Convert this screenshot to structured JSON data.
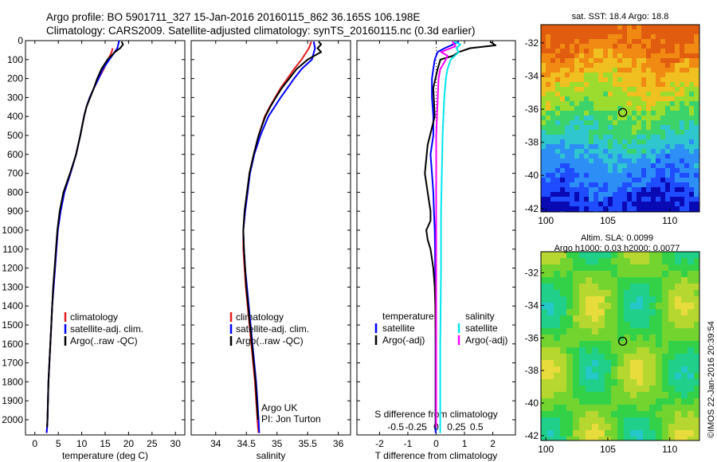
{
  "title": {
    "line1": "Argo profile: BO 5901711_327 15-Jan-2016 20160115_862 36.165S 106.198E",
    "line2": "Climatology: CARS2009. Satellite-adjusted climatology: synTS_20160115.nc (0.3d earlier)"
  },
  "stamp": "©IMOS 22-Jan-2016 20:39:54",
  "colors": {
    "climatology": "#e41a1c",
    "satellite": "#0000ff",
    "argo": "#000000",
    "satellite_s": "#00e5ee",
    "argo_s": "#ff00ff"
  },
  "chart_data": [
    {
      "type": "line",
      "xlabel": "temperature (deg C)",
      "xlim": [
        -2,
        32
      ],
      "ylim": [
        2080,
        0
      ],
      "xticks": [
        0,
        5,
        10,
        15,
        20,
        25,
        30
      ],
      "yticks": [
        0,
        100,
        200,
        300,
        400,
        500,
        600,
        700,
        800,
        900,
        1000,
        1100,
        1200,
        1300,
        1400,
        1500,
        1600,
        1700,
        1800,
        1900,
        2000
      ],
      "legend": {
        "placement": "bottom-center",
        "entries": [
          "climatology",
          "satellite-adj. clim.",
          "Argo(..raw -QC)"
        ]
      },
      "series": [
        {
          "name": "climatology",
          "color": "climatology",
          "x": [
            16.6,
            16.4,
            15.6,
            14.7,
            13.6,
            12.6,
            11.7,
            11.0,
            10.5,
            9.7,
            8.8,
            7.6,
            6.3,
            5.5,
            4.9,
            4.6,
            4.3,
            4.0,
            3.7,
            3.5,
            3.3,
            3.1,
            2.9,
            2.8,
            2.7,
            2.6,
            2.5
          ],
          "y": [
            40,
            60,
            100,
            150,
            200,
            250,
            300,
            350,
            400,
            500,
            600,
            700,
            800,
            900,
            1000,
            1100,
            1200,
            1300,
            1400,
            1500,
            1600,
            1700,
            1800,
            1900,
            2000,
            2040,
            2070
          ]
        },
        {
          "name": "satellite-adj. clim.",
          "color": "satellite",
          "x": [
            18.0,
            17.6,
            15.9,
            14.5,
            13.6,
            12.6,
            11.7,
            11.0,
            10.5,
            9.7,
            8.8,
            7.6,
            6.3,
            5.5,
            4.9,
            4.6,
            4.3,
            4.0,
            3.7,
            3.5,
            3.3,
            3.1,
            2.9,
            2.8,
            2.7,
            2.6,
            2.5
          ],
          "y": [
            0,
            40,
            100,
            150,
            200,
            250,
            300,
            350,
            400,
            500,
            600,
            700,
            800,
            900,
            1000,
            1100,
            1200,
            1300,
            1400,
            1500,
            1600,
            1700,
            1800,
            1900,
            2000,
            2040,
            2070
          ]
        },
        {
          "name": "Argo(..raw -QC)",
          "color": "argo",
          "x": [
            18.5,
            18.8,
            18.2,
            17.1,
            15.5,
            14.2,
            13.3,
            12.6,
            11.8,
            11.0,
            10.5,
            9.7,
            8.8,
            7.5,
            6.1,
            5.3,
            4.8,
            4.5,
            4.2,
            3.9,
            3.7,
            3.5,
            3.3,
            3.1,
            2.9,
            2.8,
            2.7,
            2.6
          ],
          "y": [
            5,
            20,
            40,
            60,
            100,
            150,
            200,
            250,
            300,
            350,
            400,
            500,
            600,
            700,
            800,
            900,
            1000,
            1100,
            1200,
            1300,
            1400,
            1500,
            1600,
            1700,
            1800,
            1900,
            2000,
            2040
          ]
        }
      ]
    },
    {
      "type": "line",
      "xlabel": "salinity",
      "xlim": [
        33.6,
        36.2
      ],
      "ylim": [
        2080,
        0
      ],
      "xticks": [
        34,
        34.5,
        35,
        35.5,
        36
      ],
      "legend": {
        "placement": "bottom-center",
        "entries": [
          "climatology",
          "satellite-adj. clim.",
          "Argo(..raw -QC)"
        ]
      },
      "annotation": [
        "Argo UK",
        "PI: Jon Turton"
      ],
      "series": [
        {
          "name": "climatology",
          "color": "climatology",
          "x": [
            35.56,
            35.52,
            35.4,
            35.28,
            35.17,
            35.06,
            34.97,
            34.88,
            34.8,
            34.7,
            34.62,
            34.55,
            34.52,
            34.48,
            34.45,
            34.45,
            34.47,
            34.49,
            34.52,
            34.55,
            34.58,
            34.61,
            34.64,
            34.66,
            34.68,
            34.69,
            34.7
          ],
          "y": [
            5,
            40,
            100,
            150,
            200,
            250,
            300,
            350,
            400,
            500,
            600,
            700,
            800,
            900,
            1000,
            1100,
            1200,
            1300,
            1400,
            1500,
            1600,
            1700,
            1800,
            1900,
            2000,
            2040,
            2070
          ]
        },
        {
          "name": "satellite-adj. clim.",
          "color": "satellite",
          "x": [
            35.6,
            35.62,
            35.57,
            35.4,
            35.28,
            35.17,
            35.06,
            34.96,
            34.86,
            34.73,
            34.63,
            34.56,
            34.52,
            34.48,
            34.45,
            34.46,
            34.48,
            34.51,
            34.54,
            34.57,
            34.6,
            34.63,
            34.66,
            34.68,
            34.7,
            34.71
          ],
          "y": [
            5,
            40,
            100,
            150,
            200,
            250,
            300,
            350,
            400,
            500,
            600,
            700,
            800,
            900,
            1000,
            1100,
            1200,
            1300,
            1400,
            1500,
            1600,
            1700,
            1800,
            1900,
            2000,
            2070
          ]
        },
        {
          "name": "Argo(..raw -QC)",
          "color": "argo",
          "x": [
            35.68,
            35.72,
            35.66,
            35.72,
            35.5,
            35.32,
            35.2,
            35.08,
            34.98,
            34.89,
            34.81,
            34.7,
            34.62,
            34.55,
            34.51,
            34.47,
            34.45,
            34.46,
            34.48,
            34.5,
            34.53,
            34.56,
            34.59,
            34.62,
            34.65,
            34.67,
            34.69
          ],
          "y": [
            5,
            20,
            40,
            60,
            100,
            150,
            200,
            250,
            300,
            350,
            400,
            500,
            600,
            700,
            800,
            900,
            1000,
            1100,
            1200,
            1300,
            1400,
            1500,
            1600,
            1700,
            1800,
            1900,
            2000
          ]
        }
      ]
    },
    {
      "type": "line",
      "xlabel": "T difference from climatology",
      "top_xlabel": "S difference from climatology",
      "xlim": [
        -2.8,
        2.8
      ],
      "ylim": [
        2080,
        0
      ],
      "xticks": [
        -2,
        -1,
        0,
        1,
        2
      ],
      "top_xticks": [
        {
          "v": -0.5,
          "label": "-0.5"
        },
        {
          "v": -0.25,
          "label": "-0.25"
        },
        {
          "v": 0,
          "label": "0"
        },
        {
          "v": 0.25,
          "label": "0.25"
        },
        {
          "v": 0.5,
          "label": "0.5"
        }
      ],
      "legend": {
        "placement": "bottom-center",
        "headers": [
          "temperature",
          "salinity"
        ],
        "entries": [
          "satellite",
          "Argo(-adj)",
          "satellite",
          "Argo(-adj)"
        ]
      },
      "series": [
        {
          "name": "temperature satellite",
          "color": "satellite",
          "x": [
            0.8,
            0.6,
            0.3,
            0.05,
            -0.05,
            -0.1,
            -0.15,
            -0.15,
            -0.1,
            -0.1,
            -0.2,
            -0.15,
            -0.1,
            -0.08,
            -0.05,
            -0.04,
            -0.03,
            -0.02,
            -0.02,
            -0.02
          ],
          "y": [
            5,
            20,
            40,
            60,
            100,
            150,
            200,
            300,
            400,
            500,
            600,
            700,
            800,
            900,
            1000,
            1100,
            1300,
            1500,
            1800,
            2070
          ]
        },
        {
          "name": "temperature Argo(-adj)",
          "color": "argo",
          "x": [
            1.9,
            2.1,
            1.2,
            0.8,
            0.6,
            0.15,
            0.05,
            -0.1,
            -0.05,
            -0.3,
            -0.4,
            -0.3,
            -0.2,
            -0.2,
            -0.35,
            -0.3,
            -0.2,
            -0.1,
            -0.05,
            -0.03,
            -0.02,
            -0.02
          ],
          "y": [
            5,
            25,
            40,
            60,
            80,
            100,
            150,
            250,
            400,
            550,
            700,
            800,
            900,
            950,
            1000,
            1050,
            1100,
            1200,
            1300,
            1400,
            1600,
            2040
          ]
        },
        {
          "name": "salinity satellite",
          "color": "satellite_s",
          "x": [
            0.22,
            0.3,
            0.25,
            0.28,
            0.18,
            0.14,
            0.12,
            0.1,
            0.09,
            0.08,
            0.07,
            0.06,
            0.06,
            0.05,
            0.05
          ],
          "y": [
            5,
            20,
            40,
            60,
            100,
            150,
            200,
            300,
            400,
            500,
            700,
            900,
            1200,
            1600,
            2070
          ]
        },
        {
          "name": "salinity Argo(-adj)",
          "color": "argo_s",
          "x": [
            0.2,
            0.24,
            0.06,
            0.14,
            0.12,
            0.05,
            0.03,
            0.02,
            0.0,
            0.0,
            0.0
          ],
          "y": [
            5,
            30,
            60,
            80,
            100,
            150,
            200,
            300,
            500,
            1000,
            2040
          ]
        }
      ]
    },
    {
      "type": "heatmap",
      "title": "sat. SST: 18.4  Argo: 18.8",
      "xlim": [
        99.6,
        112.4
      ],
      "ylim": [
        -42.2,
        -30.9
      ],
      "xticks": [
        100,
        105,
        110
      ],
      "yticks": [
        -32,
        -34,
        -36,
        -38,
        -40,
        -42
      ],
      "marker": {
        "lon": 106.2,
        "lat": -36.2
      }
    },
    {
      "type": "heatmap",
      "title_lines": [
        "Altim. SLA: 0.0099",
        "Argo h1000: 0.03 h2000: 0.0077"
      ],
      "xlim": [
        99.6,
        112.4
      ],
      "ylim": [
        -42.3,
        -30.7
      ],
      "xticks": [
        100,
        105,
        110
      ],
      "yticks": [
        -32,
        -34,
        -36,
        -38,
        -40,
        -42
      ],
      "marker": {
        "lon": 106.2,
        "lat": -36.2
      }
    }
  ]
}
